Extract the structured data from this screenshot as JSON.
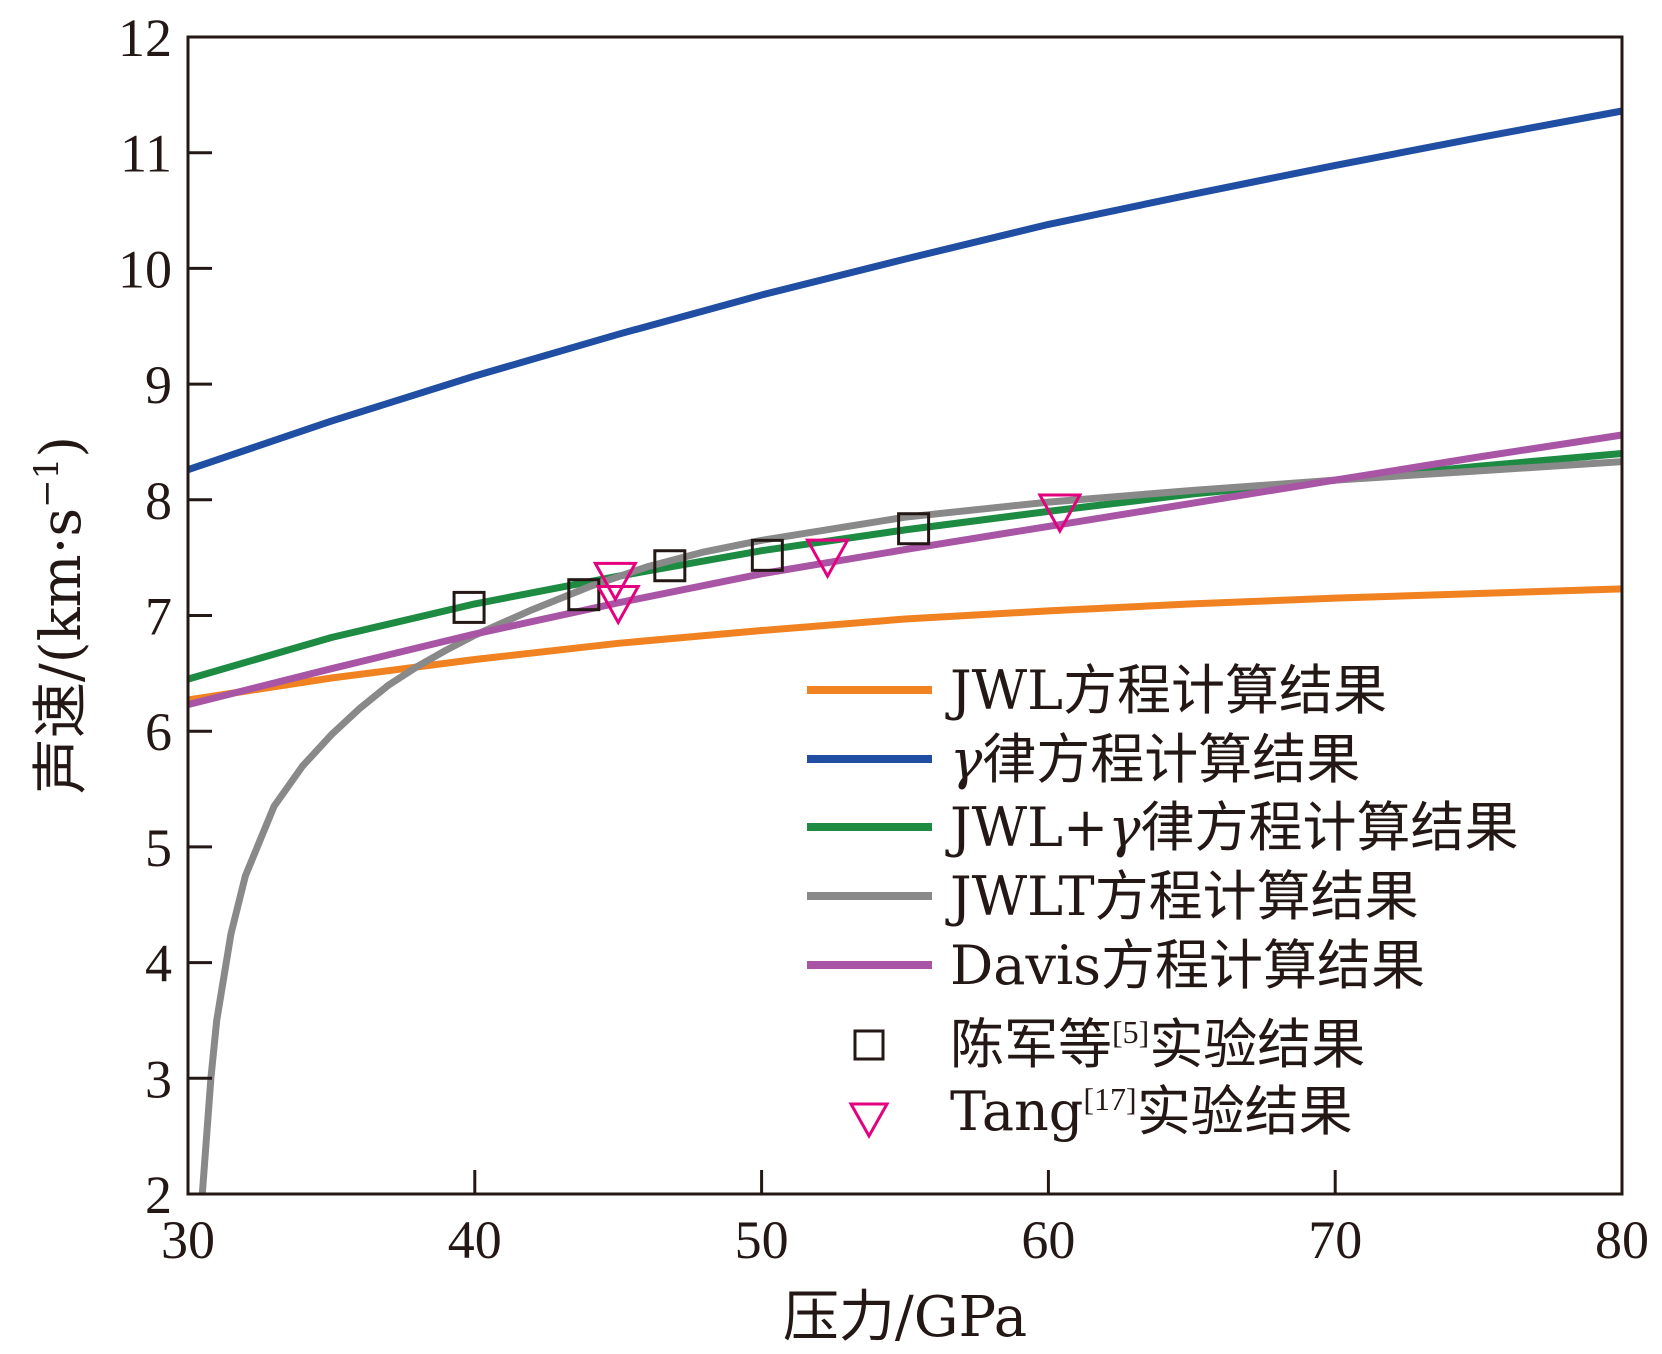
{
  "chart_data": {
    "type": "line",
    "xlabel": "压力/GPa",
    "ylabel": "声速/(km·s⁻¹)",
    "ylabel_parts": {
      "main": "声速/(km·s",
      "sup": "−1",
      "close": ")"
    },
    "xlim": [
      30,
      80
    ],
    "ylim": [
      2,
      12
    ],
    "xticks": [
      30,
      40,
      50,
      60,
      70,
      80
    ],
    "yticks": [
      2,
      3,
      4,
      5,
      6,
      7,
      8,
      9,
      10,
      11,
      12
    ],
    "grid": false,
    "legend_position": "lower-right",
    "series": [
      {
        "name": "JWL方程计算结果",
        "kind": "line",
        "color": "#f08221",
        "x": [
          30,
          35,
          40,
          45,
          50,
          55,
          60,
          65,
          70,
          75,
          80
        ],
        "y": [
          6.27,
          6.46,
          6.62,
          6.76,
          6.87,
          6.97,
          7.04,
          7.1,
          7.15,
          7.19,
          7.23
        ]
      },
      {
        "name": "γ律方程计算结果",
        "name_parts": {
          "greek": "γ",
          "text": "律方程计算结果"
        },
        "kind": "line",
        "color": "#1f4ea3",
        "x": [
          30,
          35,
          40,
          45,
          50,
          55,
          60,
          65,
          70,
          75,
          80
        ],
        "y": [
          8.26,
          8.68,
          9.07,
          9.43,
          9.77,
          10.08,
          10.38,
          10.64,
          10.89,
          11.13,
          11.36
        ]
      },
      {
        "name": "JWL+γ律方程计算结果",
        "name_parts": {
          "pre": "JWL+",
          "greek": "γ",
          "text": "律方程计算结果"
        },
        "kind": "line",
        "color": "#1e8b43",
        "x": [
          30,
          35,
          40,
          45,
          50,
          55,
          60,
          65,
          70,
          75,
          80
        ],
        "y": [
          6.45,
          6.81,
          7.1,
          7.34,
          7.56,
          7.74,
          7.9,
          8.05,
          8.17,
          8.29,
          8.4
        ]
      },
      {
        "name": "JWLT方程计算结果",
        "kind": "line",
        "color": "#898989",
        "x": [
          30.5,
          30.8,
          31,
          31.5,
          32,
          33,
          34,
          35,
          36,
          37,
          38,
          39,
          40,
          42,
          44,
          46,
          48,
          50,
          55,
          60,
          65,
          70,
          75,
          80
        ],
        "y": [
          2.0,
          3.0,
          3.5,
          4.25,
          4.75,
          5.35,
          5.7,
          5.97,
          6.2,
          6.4,
          6.56,
          6.7,
          6.83,
          7.05,
          7.25,
          7.42,
          7.55,
          7.65,
          7.85,
          7.98,
          8.08,
          8.17,
          8.25,
          8.33
        ]
      },
      {
        "name": "Davis方程计算结果",
        "kind": "line",
        "color": "#a855a5",
        "x": [
          30,
          35,
          40,
          45,
          50,
          55,
          60,
          65,
          70,
          75,
          80
        ],
        "y": [
          6.23,
          6.54,
          6.84,
          7.11,
          7.36,
          7.57,
          7.77,
          7.97,
          8.17,
          8.37,
          8.56
        ]
      },
      {
        "name": "陈军等[5]实验结果",
        "name_parts": {
          "text": "陈军等",
          "sup": "[5]",
          "after": "实验结果"
        },
        "kind": "marker",
        "marker": "square",
        "color": "#231815",
        "x": [
          39.8,
          43.8,
          46.8,
          50.2,
          55.3
        ],
        "y": [
          7.07,
          7.18,
          7.43,
          7.52,
          7.75
        ]
      },
      {
        "name": "Tang[17]实验结果",
        "name_parts": {
          "text": "Tang",
          "sup": "[17]",
          "after": "实验结果"
        },
        "kind": "marker",
        "marker": "triangle-down",
        "color": "#e4007f",
        "x": [
          44.9,
          45.0,
          52.3,
          60.4
        ],
        "y": [
          7.33,
          7.13,
          7.53,
          7.92
        ]
      }
    ]
  }
}
